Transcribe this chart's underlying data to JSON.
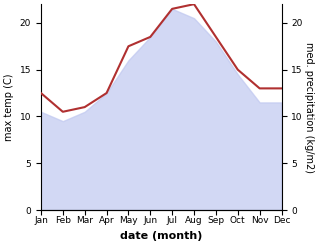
{
  "months": [
    "Jan",
    "Feb",
    "Mar",
    "Apr",
    "May",
    "Jun",
    "Jul",
    "Aug",
    "Sep",
    "Oct",
    "Nov",
    "Dec"
  ],
  "max_temp": [
    10.5,
    9.5,
    10.5,
    12.5,
    16.0,
    18.5,
    21.5,
    20.5,
    18.0,
    14.5,
    11.5,
    11.5
  ],
  "med_precip": [
    12.5,
    10.5,
    11.0,
    12.5,
    17.5,
    18.5,
    21.5,
    22.0,
    18.5,
    15.0,
    13.0,
    13.0
  ],
  "fill_color": "#c0c8f0",
  "fill_alpha": 0.7,
  "precip_color": "#b03030",
  "precip_linewidth": 1.5,
  "xlabel": "date (month)",
  "ylabel_left": "max temp (C)",
  "ylabel_right": "med. precipitation (kg/m2)",
  "ylim_left": [
    0,
    22
  ],
  "ylim_right": [
    0,
    22
  ],
  "yticks_left": [
    0,
    5,
    10,
    15,
    20
  ],
  "yticks_right": [
    0,
    5,
    10,
    15,
    20
  ],
  "fig_width": 3.18,
  "fig_height": 2.45,
  "dpi": 100,
  "background_color": "#ffffff",
  "ylabel_left_fontsize": 7,
  "ylabel_right_fontsize": 7,
  "xlabel_fontsize": 8,
  "tick_fontsize": 6.5,
  "xlabel_fontweight": "bold"
}
